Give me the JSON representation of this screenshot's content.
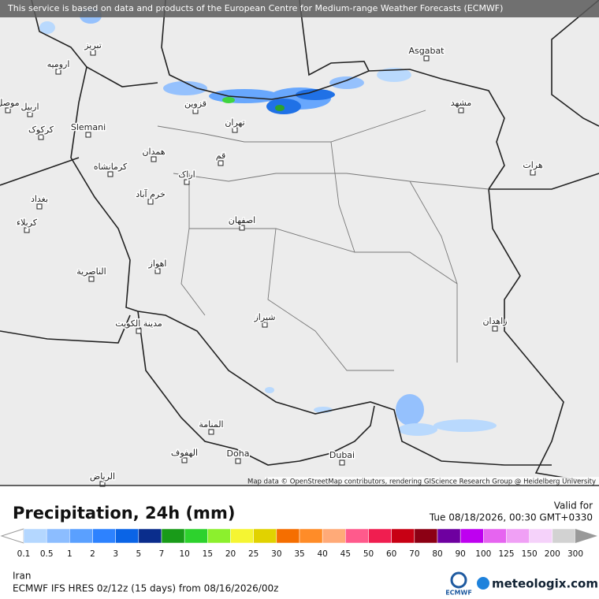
{
  "banner": "This service is based on data and products of the European Centre for Medium-range Weather Forecasts (ECMWF)",
  "attribution": "Map data © OpenStreetMap contributors, rendering GIScience Research Group @ Heidelberg University",
  "cities": [
    "تبریز",
    "ارومیه",
    "موصل",
    "اربیل",
    "کرکوک",
    "Slemani",
    "قزوین",
    "تهران",
    "همدان",
    "کرمانشاه",
    "قم",
    "اراک",
    "خرم آباد",
    "بغداد",
    "کربلاء",
    "اصفهان",
    "اهواز",
    "الناصرية",
    "مدينة الكويت",
    "شيراز",
    "زاهدان",
    "هرات",
    "مشهد",
    "Asgabat",
    "المنامة",
    "الهفوف",
    "Doha",
    "Dubai",
    "الرياض"
  ],
  "legend": {
    "title": "Precipitation, 24h (mm)",
    "valid_label": "Valid for",
    "valid_time": "Tue 08/18/2026, 00:30 GMT+0330",
    "ticks": [
      0.1,
      0.5,
      1,
      2,
      3,
      5,
      7,
      10,
      15,
      20,
      25,
      30,
      35,
      40,
      45,
      50,
      60,
      70,
      80,
      90,
      100,
      125,
      150,
      200,
      300
    ],
    "colors": [
      "#b4d7ff",
      "#8cbdff",
      "#5aa0ff",
      "#2d82ff",
      "#0a64e6",
      "#0a2d8c",
      "#199b19",
      "#2dd22d",
      "#8cf02d",
      "#f5f532",
      "#e1d200",
      "#f56e00",
      "#ff8c28",
      "#ffaa78",
      "#ff5a8c",
      "#f01e50",
      "#c80014",
      "#8c0014",
      "#6e00a0",
      "#be00f0",
      "#e664f0",
      "#f0a0f5",
      "#f5d2fa",
      "#d2d2d2"
    ]
  },
  "footer": {
    "region": "Iran",
    "model": "ECMWF IFS HRES 0z/12z (15 days) from  08/16/2026/00z",
    "brand_ecmwf": "ECMWF",
    "brand_site": "meteologix.com"
  }
}
